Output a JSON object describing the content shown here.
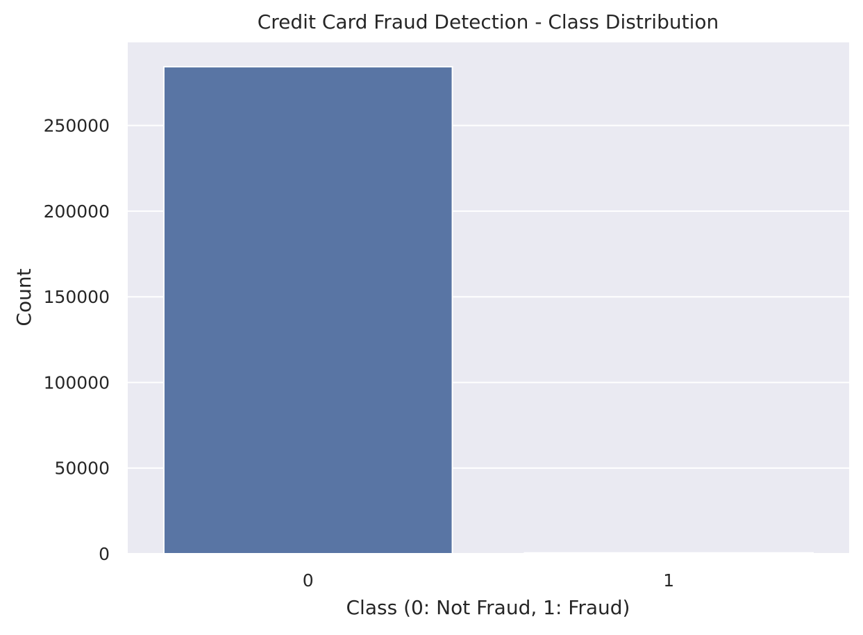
{
  "chart_data": {
    "type": "bar",
    "title": "Credit Card Fraud Detection - Class Distribution",
    "xlabel": "Class (0: Not Fraud, 1: Fraud)",
    "ylabel": "Count",
    "categories": [
      "0",
      "1"
    ],
    "values": [
      284315,
      492
    ],
    "ylim": [
      0,
      298531
    ],
    "yticks": [
      0,
      50000,
      100000,
      150000,
      200000,
      250000
    ],
    "ytick_labels": [
      "0",
      "50000",
      "100000",
      "150000",
      "200000",
      "250000"
    ],
    "grid": true,
    "style": "seaborn darkgrid",
    "colors": {
      "background": "#eaeaf2",
      "grid": "#ffffff",
      "bar": "#5975a4",
      "bar_edge": "#ffffff",
      "text": "#262626"
    }
  }
}
